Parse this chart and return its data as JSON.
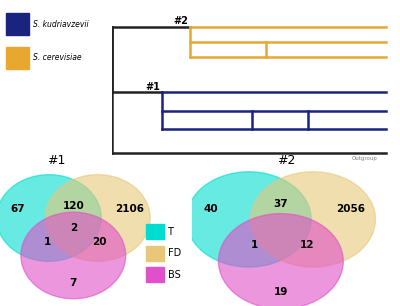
{
  "legend_colors_blue": "#1a237e",
  "legend_colors_orange": "#e8a830",
  "tree_color_orange": "#e8a830",
  "tree_color_blue": "#1a237e",
  "tree_color_black": "#222222",
  "venn1_title": "#1",
  "venn2_title": "#2",
  "venn1": {
    "T_only": 67,
    "FD_only": 2106,
    "BS_only": 7,
    "T_FD": 120,
    "T_BS": 1,
    "FD_BS": 20,
    "T_FD_BS": 2
  },
  "venn2": {
    "T_only": 40,
    "FD_only": 2056,
    "BS_only": 19,
    "T_FD": 37,
    "T_BS": 1,
    "FD_BS": 12
  },
  "circle_T_color": "#00ddd0",
  "circle_FD_color": "#e8c878",
  "circle_BS_color": "#e050c8",
  "legend_T": "T",
  "legend_FD": "FD",
  "legend_BS": "BS"
}
